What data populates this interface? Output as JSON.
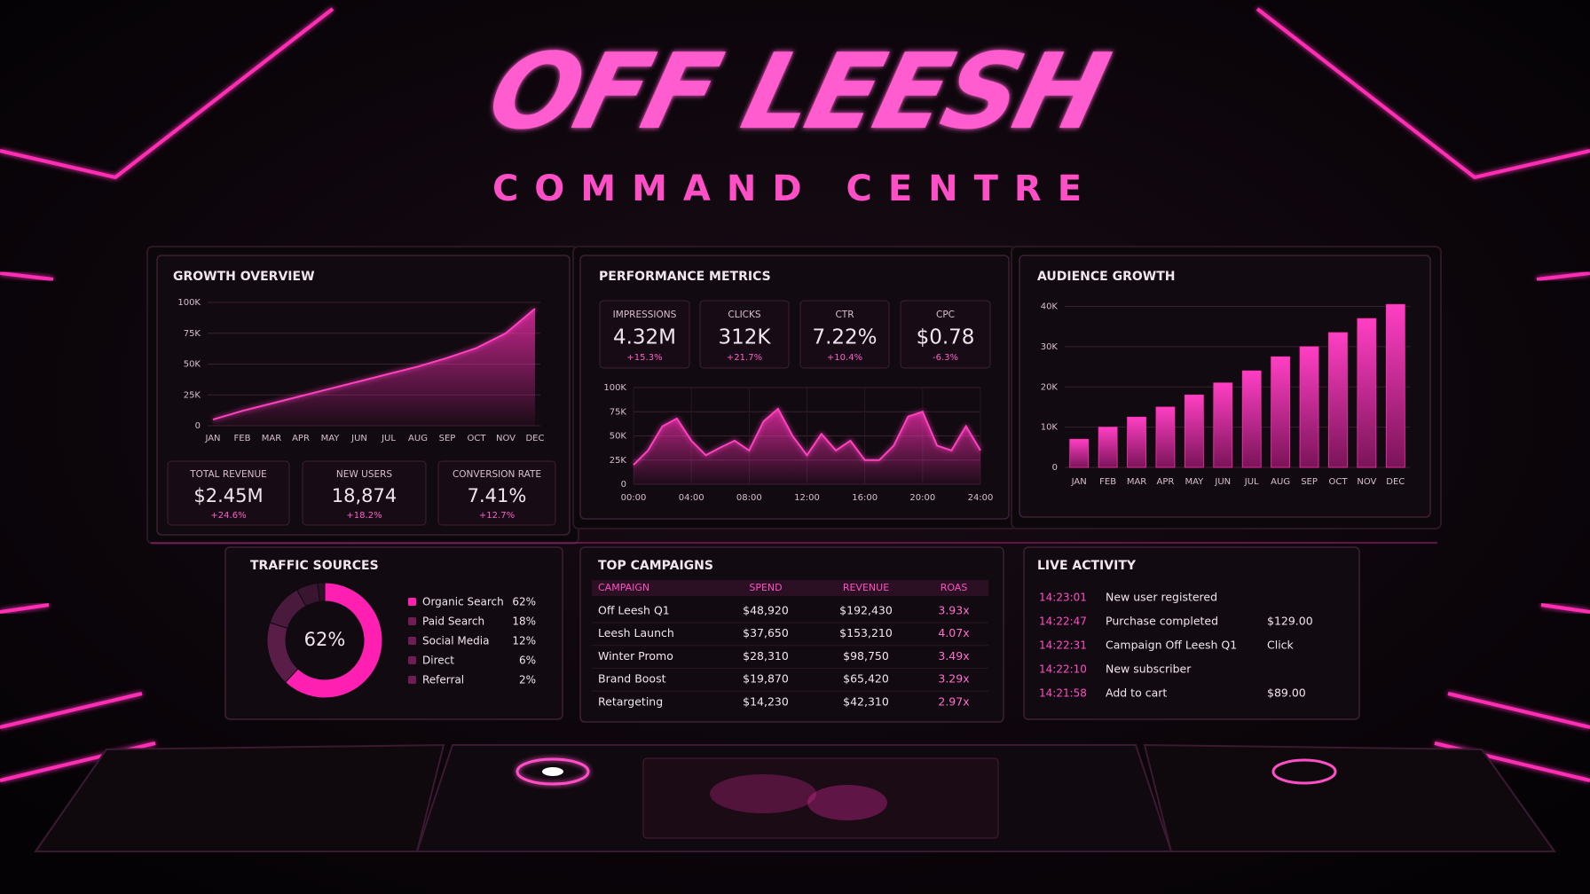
{
  "header": {
    "title": "OFF LEESH",
    "subtitle": "COMMAND CENTRE"
  },
  "chart_data": [
    {
      "type": "area",
      "title": "GROWTH OVERVIEW",
      "categories": [
        "JAN",
        "FEB",
        "MAR",
        "APR",
        "MAY",
        "JUN",
        "JUL",
        "AUG",
        "SEP",
        "OCT",
        "NOV",
        "DEC"
      ],
      "values": [
        5000,
        12000,
        18000,
        24000,
        30000,
        36000,
        42000,
        48000,
        55000,
        63000,
        75000,
        95000
      ],
      "color": "#ff3fbf",
      "ylim": [
        0,
        100000
      ],
      "yticks": [
        0,
        {
          "value": 25000,
          "label": "25K"
        },
        {
          "value": 50000,
          "label": "50K"
        },
        {
          "value": 75000,
          "label": "75K"
        },
        {
          "value": 100000,
          "label": "100K"
        }
      ],
      "grid": true
    },
    {
      "type": "area",
      "title": "PERFORMANCE METRICS",
      "x": [
        0,
        1,
        2,
        3,
        4,
        5,
        6,
        7,
        8,
        9,
        10,
        11,
        12,
        13,
        14,
        15,
        16,
        17,
        18,
        19,
        20,
        21,
        22,
        23,
        24
      ],
      "values": [
        20000,
        35000,
        60000,
        68000,
        45000,
        30000,
        38000,
        45000,
        35000,
        65000,
        78000,
        50000,
        30000,
        52000,
        35000,
        45000,
        25000,
        25000,
        40000,
        70000,
        75000,
        40000,
        35000,
        60000,
        35000
      ],
      "color": "#ff3fbf",
      "xlim": [
        0,
        24
      ],
      "xticks": [
        {
          "value": 0,
          "label": "00:00"
        },
        {
          "value": 4,
          "label": "04:00"
        },
        {
          "value": 8,
          "label": "08:00"
        },
        {
          "value": 12,
          "label": "12:00"
        },
        {
          "value": 16,
          "label": "16:00"
        },
        {
          "value": 20,
          "label": "20:00"
        },
        {
          "value": 24,
          "label": "24:00"
        }
      ],
      "ylim": [
        0,
        100000
      ],
      "yticks": [
        0,
        {
          "value": 25000,
          "label": "25K"
        },
        {
          "value": 50000,
          "label": "50K"
        },
        {
          "value": 75000,
          "label": "75K"
        },
        {
          "value": 100000,
          "label": "100K"
        }
      ],
      "grid": true
    },
    {
      "type": "bar",
      "title": "AUDIENCE GROWTH",
      "categories": [
        "JAN",
        "FEB",
        "MAR",
        "APR",
        "MAY",
        "JUN",
        "JUL",
        "AUG",
        "SEP",
        "OCT",
        "NOV",
        "DEC"
      ],
      "values": [
        7000,
        10000,
        12500,
        15000,
        18000,
        21000,
        24000,
        27500,
        30000,
        33500,
        37000,
        40500
      ],
      "color": "#ff2fb0",
      "ylim": [
        0,
        41000
      ],
      "yticks": [
        0,
        {
          "value": 10000,
          "label": "10K"
        },
        {
          "value": 20000,
          "label": "20K"
        },
        {
          "value": 30000,
          "label": "30K"
        },
        {
          "value": 40000,
          "label": "40K"
        }
      ],
      "grid": true
    },
    {
      "type": "pie",
      "title": "TRAFFIC SOURCES",
      "donut": true,
      "categories": [
        "Organic Search",
        "Paid Search",
        "Social Media",
        "Direct",
        "Referral"
      ],
      "values": [
        62,
        18,
        12,
        6,
        2
      ],
      "value_labels": [
        "62%",
        "18%",
        "12%",
        "6%",
        "2%"
      ],
      "colors": [
        "#ff1fb0",
        "#5a1d48",
        "#4a1a3c",
        "#3a1530",
        "#2e1126"
      ]
    }
  ],
  "growth_kpis": [
    {
      "label": "TOTAL REVENUE",
      "value": "$2.45M",
      "change": "+24.6%"
    },
    {
      "label": "NEW USERS",
      "value": "18,874",
      "change": "+18.2%"
    },
    {
      "label": "CONVERSION RATE",
      "value": "7.41%",
      "change": "+12.7%"
    }
  ],
  "performance_kpis": [
    {
      "label": "IMPRESSIONS",
      "value": "4.32M",
      "change": "+15.3%"
    },
    {
      "label": "CLICKS",
      "value": "312K",
      "change": "+21.7%"
    },
    {
      "label": "CTR",
      "value": "7.22%",
      "change": "+10.4%"
    },
    {
      "label": "CPC",
      "value": "$0.78",
      "change": "-6.3%"
    }
  ],
  "campaigns": {
    "title": "TOP CAMPAIGNS",
    "columns": [
      "CAMPAIGN",
      "SPEND",
      "REVENUE",
      "ROAS"
    ],
    "rows": [
      [
        "Off Leesh Q1",
        "$48,920",
        "$192,430",
        "3.93x"
      ],
      [
        "Leesh Launch",
        "$37,650",
        "$153,210",
        "4.07x"
      ],
      [
        "Winter Promo",
        "$28,310",
        "$98,750",
        "3.49x"
      ],
      [
        "Brand Boost",
        "$19,870",
        "$65,420",
        "3.29x"
      ],
      [
        "Retargeting",
        "$14,230",
        "$42,310",
        "2.97x"
      ]
    ]
  },
  "live_activity": {
    "title": "LIVE ACTIVITY",
    "rows": [
      {
        "time": "14:23:01",
        "event": "New user registered"
      },
      {
        "time": "14:22:47",
        "event": "Purchase completed",
        "amount": "$129.00"
      },
      {
        "time": "14:22:31",
        "event": "Campaign Off Leesh Q1",
        "amount": "Click"
      },
      {
        "time": "14:22:10",
        "event": "New subscriber"
      },
      {
        "time": "14:21:58",
        "event": "Add to cart",
        "amount": "$89.00"
      }
    ]
  }
}
